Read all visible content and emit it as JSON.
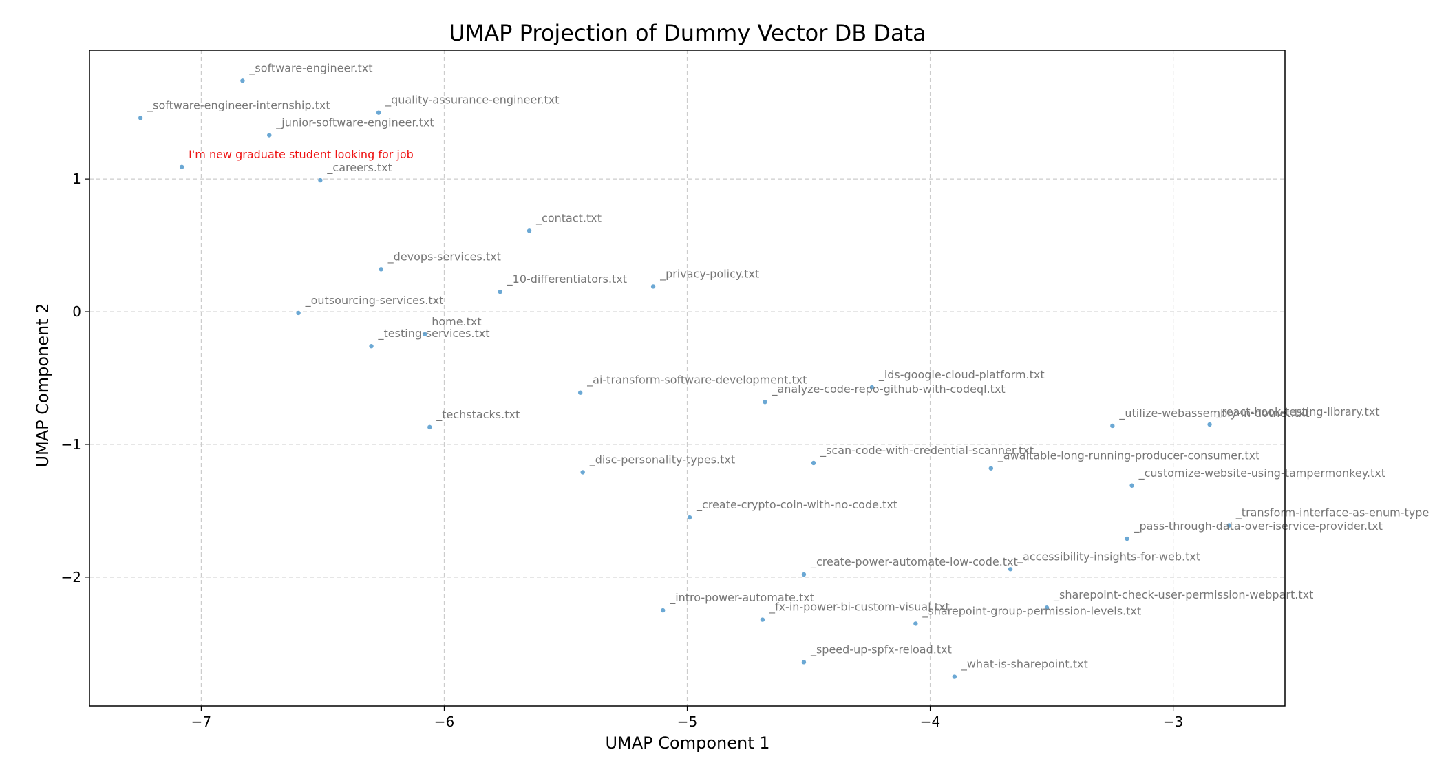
{
  "chart_data": {
    "type": "scatter",
    "title": "UMAP Projection of Dummy Vector DB Data",
    "xlabel": "UMAP Component 1",
    "ylabel": "UMAP Component 2",
    "xlim": [
      -7.46,
      -2.54
    ],
    "ylim": [
      -2.97,
      1.97
    ],
    "xticks": [
      -7,
      -6,
      -5,
      -4,
      -3
    ],
    "yticks": [
      -2,
      -1,
      0,
      1
    ],
    "xtick_labels": [
      "−7",
      "−6",
      "−5",
      "−4",
      "−3"
    ],
    "ytick_labels": [
      "−2",
      "−1",
      "0",
      "1"
    ],
    "grid": true,
    "colors": {
      "point": "#5b9ecf",
      "label": "#777777",
      "query_label": "#ee1111",
      "grid": "#cccccc",
      "axis": "#000000"
    },
    "points": [
      {
        "x": -6.83,
        "y": 1.74,
        "label": "_software-engineer.txt"
      },
      {
        "x": -7.25,
        "y": 1.46,
        "label": "_software-engineer-internship.txt"
      },
      {
        "x": -6.27,
        "y": 1.5,
        "label": "_quality-assurance-engineer.txt"
      },
      {
        "x": -6.72,
        "y": 1.33,
        "label": "_junior-software-engineer.txt"
      },
      {
        "x": -7.08,
        "y": 1.09,
        "label": "I'm new graduate student looking for job",
        "query": true
      },
      {
        "x": -6.51,
        "y": 0.99,
        "label": "_careers.txt"
      },
      {
        "x": -5.65,
        "y": 0.61,
        "label": "_contact.txt"
      },
      {
        "x": -6.26,
        "y": 0.32,
        "label": "_devops-services.txt"
      },
      {
        "x": -5.77,
        "y": 0.15,
        "label": "_10-differentiators.txt"
      },
      {
        "x": -5.14,
        "y": 0.19,
        "label": "_privacy-policy.txt"
      },
      {
        "x": -6.6,
        "y": -0.01,
        "label": "_outsourcing-services.txt"
      },
      {
        "x": -6.08,
        "y": -0.17,
        "label": "home.txt"
      },
      {
        "x": -6.3,
        "y": -0.26,
        "label": "_testing-services.txt"
      },
      {
        "x": -5.44,
        "y": -0.61,
        "label": "_ai-transform-software-development.txt"
      },
      {
        "x": -4.24,
        "y": -0.57,
        "label": "_ids-google-cloud-platform.txt"
      },
      {
        "x": -4.68,
        "y": -0.68,
        "label": "_analyze-code-repo-github-with-codeql.txt"
      },
      {
        "x": -6.06,
        "y": -0.87,
        "label": "_techstacks.txt"
      },
      {
        "x": -3.25,
        "y": -0.86,
        "label": "_utilize-webassembly-in-dotnet.txt"
      },
      {
        "x": -2.85,
        "y": -0.85,
        "label": "_react-hook-testing-library.txt"
      },
      {
        "x": -4.48,
        "y": -1.14,
        "label": "_scan-code-with-credential-scanner.txt"
      },
      {
        "x": -3.75,
        "y": -1.18,
        "label": "_awaitable-long-running-producer-consumer.txt"
      },
      {
        "x": -5.43,
        "y": -1.21,
        "label": "_disc-personality-types.txt"
      },
      {
        "x": -3.17,
        "y": -1.31,
        "label": "_customize-website-using-tampermonkey.txt"
      },
      {
        "x": -4.99,
        "y": -1.55,
        "label": "_create-crypto-coin-with-no-code.txt"
      },
      {
        "x": -2.77,
        "y": -1.61,
        "label": "_transform-interface-as-enum-type"
      },
      {
        "x": -3.19,
        "y": -1.71,
        "label": "_pass-through-data-over-iservice-provider.txt"
      },
      {
        "x": -3.67,
        "y": -1.94,
        "label": "_accessibility-insights-for-web.txt"
      },
      {
        "x": -4.52,
        "y": -1.98,
        "label": "_create-power-automate-low-code.txt"
      },
      {
        "x": -3.52,
        "y": -2.23,
        "label": "_sharepoint-check-user-permission-webpart.txt"
      },
      {
        "x": -5.1,
        "y": -2.25,
        "label": "_intro-power-automate.txt"
      },
      {
        "x": -4.69,
        "y": -2.32,
        "label": "_fx-in-power-bi-custom-visual.txt"
      },
      {
        "x": -4.06,
        "y": -2.35,
        "label": "_sharepoint-group-permission-levels.txt"
      },
      {
        "x": -4.52,
        "y": -2.64,
        "label": "_speed-up-spfx-reload.txt"
      },
      {
        "x": -3.9,
        "y": -2.75,
        "label": "_what-is-sharepoint.txt"
      }
    ]
  }
}
